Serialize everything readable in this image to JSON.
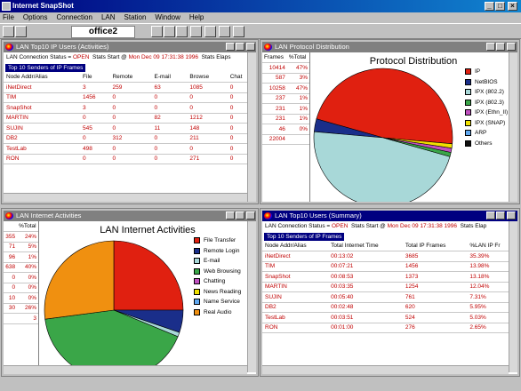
{
  "app": {
    "title": "Internet SnapShot"
  },
  "menu": [
    "File",
    "Options",
    "Connection",
    "LAN",
    "Station",
    "Window",
    "Help"
  ],
  "toolbar": {
    "station": "office2"
  },
  "colors": {
    "ip": "#e02010",
    "netbios": "#1a2e8a",
    "ipx_8022": "#a8d8d8",
    "ipx_8023": "#3aa648",
    "ipx_ethii": "#c050c0",
    "ipx_snap": "#f0e000",
    "arp": "#60a8f0",
    "others": "#101010",
    "file_transfer": "#e02010",
    "remote_login": "#1a2e8a",
    "email": "#a8d8d8",
    "web_browsing": "#3aa648",
    "chatting": "#c050c0",
    "news_reading": "#f0e000",
    "name_service": "#60a8f0",
    "real_audio": "#f09010"
  },
  "win_users": {
    "title": "LAN Top10 IP Users (Activities)",
    "status_label": "LAN Connection Status = ",
    "status_value": "OPEN",
    "stats_start_label": "Stats Start @ ",
    "stats_start_value": "Mon Dec 09 17:31:38 1996",
    "stats_elapsed_label": "Stats Elaps",
    "section": "Top 10 Senders of IP Frames",
    "headers": [
      "Node Addr/Alias",
      "File",
      "Remote",
      "E-mail",
      "Browse",
      "Chat"
    ],
    "rows": [
      [
        "iNetDirect",
        "3",
        "259",
        "63",
        "1085",
        "0"
      ],
      [
        "TIM",
        "1456",
        "0",
        "0",
        "0",
        "0"
      ],
      [
        "SnapShot",
        "3",
        "0",
        "0",
        "0",
        "0"
      ],
      [
        "MARTIN",
        "0",
        "0",
        "82",
        "1212",
        "0"
      ],
      [
        "SUJIN",
        "545",
        "0",
        "11",
        "148",
        "0"
      ],
      [
        "DB2",
        "0",
        "312",
        "0",
        "211",
        "0"
      ],
      [
        "TestLab",
        "498",
        "0",
        "0",
        "0",
        "0"
      ],
      [
        "RON",
        "0",
        "0",
        "0",
        "271",
        "0"
      ]
    ]
  },
  "win_protocol": {
    "title": "LAN Protocol Distribution",
    "col_headers": [
      "Frames",
      "%Total"
    ],
    "rows": [
      [
        "10414",
        "47%"
      ],
      [
        "587",
        "3%"
      ],
      [
        "10258",
        "47%"
      ],
      [
        "237",
        "1%"
      ],
      [
        "231",
        "1%"
      ],
      [
        "231",
        "1%"
      ],
      [
        "46",
        "0%"
      ],
      [
        "22004",
        ""
      ]
    ],
    "chart_title": "Protocol Distribution",
    "legend": [
      "IP",
      "NetBIOS",
      "IPX (802.2)",
      "IPX (802.3)",
      "IPX (Ethn_II)",
      "IPX (SNAP)",
      "ARP",
      "Others"
    ]
  },
  "win_activities": {
    "title": "LAN Internet Activities",
    "col_header": "%Total",
    "rows": [
      [
        "355",
        "24%"
      ],
      [
        "71",
        "5%"
      ],
      [
        "96",
        "1%"
      ],
      [
        "638",
        "40%"
      ],
      [
        "0",
        "0%"
      ],
      [
        "0",
        "0%"
      ],
      [
        "10",
        "0%"
      ],
      [
        "30",
        "26%"
      ],
      [
        "",
        "3"
      ]
    ],
    "chart_title": "LAN Internet Activities",
    "legend": [
      "File Transfer",
      "Remote Login",
      "E-mail",
      "Web Browsing",
      "Chatting",
      "News Reading",
      "Name Service",
      "Real Audio"
    ]
  },
  "win_summary": {
    "title": "LAN Top10 Users (Summary)",
    "status_label": "LAN Connection Status = ",
    "status_value": "OPEN",
    "stats_start_label": "Stats Start @ ",
    "stats_start_value": "Mon Dec 09 17:31:38 1996",
    "stats_elapsed_label": "Stats Elap",
    "section": "Top 10 Senders of IP Frames",
    "headers": [
      "Node Addr/Alias",
      "Total Internet Time",
      "Total IP Frames",
      "%LAN IP Fr"
    ],
    "rows": [
      [
        "iNetDirect",
        "00:13:02",
        "3685",
        "35.39%"
      ],
      [
        "TIM",
        "00:07:21",
        "1456",
        "13.98%"
      ],
      [
        "SnapShot",
        "00:08:53",
        "1373",
        "13.18%"
      ],
      [
        "MARTIN",
        "00:03:35",
        "1254",
        "12.04%"
      ],
      [
        "SUJIN",
        "00:05:40",
        "761",
        "7.31%"
      ],
      [
        "DB2",
        "00:02:48",
        "620",
        "5.95%"
      ],
      [
        "TestLab",
        "00:03:51",
        "524",
        "5.03%"
      ],
      [
        "RON",
        "00:01:00",
        "276",
        "2.65%"
      ]
    ]
  },
  "chart_data": [
    {
      "type": "pie",
      "title": "Protocol Distribution",
      "labels": [
        "IP",
        "NetBIOS",
        "IPX (802.2)",
        "IPX (802.3)",
        "IPX (Ethn_II)",
        "IPX (SNAP)",
        "ARP",
        "Others"
      ],
      "values": [
        47,
        3,
        47,
        1,
        1,
        1,
        0,
        0
      ]
    },
    {
      "type": "pie",
      "title": "LAN Internet Activities",
      "labels": [
        "File Transfer",
        "Remote Login",
        "E-mail",
        "Web Browsing",
        "Chatting",
        "News Reading",
        "Name Service",
        "Real Audio"
      ],
      "values": [
        24,
        5,
        1,
        40,
        0,
        0,
        0,
        26
      ]
    }
  ]
}
